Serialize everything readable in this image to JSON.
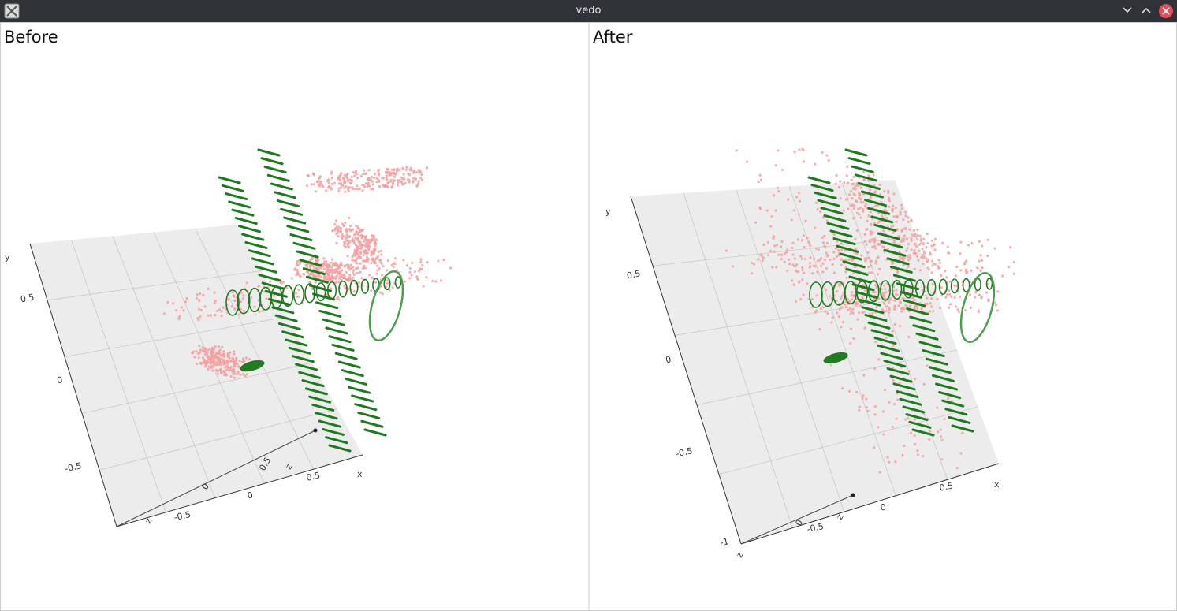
{
  "window": {
    "title": "vedo"
  },
  "panels": [
    {
      "title": "Before",
      "axes": {
        "x_label": "x",
        "y_label": "y",
        "z_label": "z",
        "x_ticks": [
          "-0.5",
          "0",
          "0.5"
        ],
        "y_ticks": [
          "0.5",
          "0",
          "-0.5"
        ],
        "z_ticks": [
          "0",
          "0.5"
        ]
      }
    },
    {
      "title": "After",
      "axes": {
        "x_label": "x",
        "y_label": "y",
        "z_label": "z",
        "x_ticks": [
          "-0.5",
          "0",
          "0.5"
        ],
        "y_ticks": [
          "0.5",
          "0",
          "-0.5",
          "-1"
        ],
        "z_ticks": [
          "0"
        ]
      }
    }
  ]
}
